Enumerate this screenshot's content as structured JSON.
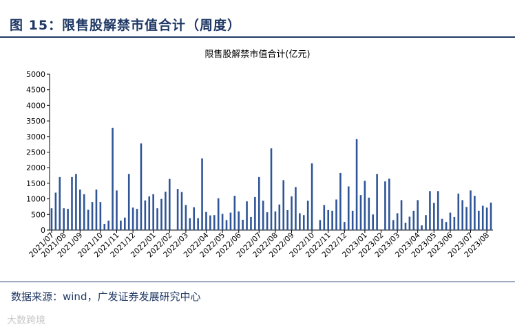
{
  "header": {
    "title": "图 15：限售股解禁市值合计（周度）"
  },
  "chart_data": {
    "type": "bar",
    "title": "限售股解禁市值合计(亿元)",
    "color": "#2f5597",
    "ylim": [
      0,
      5000
    ],
    "yticks": [
      0,
      500,
      1000,
      1500,
      2000,
      2500,
      3000,
      3500,
      4000,
      4500,
      5000
    ],
    "grid": false,
    "categories": [
      "2021/07",
      null,
      null,
      "2021/08",
      null,
      null,
      null,
      "2021/09",
      null,
      null,
      null,
      null,
      "2021/10",
      null,
      null,
      null,
      "2021/11",
      null,
      null,
      null,
      "2021/12",
      null,
      null,
      null,
      null,
      "2022/01",
      null,
      null,
      null,
      "2022/02",
      null,
      null,
      null,
      "2022/03",
      null,
      null,
      null,
      null,
      "2022/04",
      null,
      null,
      null,
      "2022/05",
      null,
      null,
      null,
      "2022/06",
      null,
      null,
      null,
      null,
      "2022/07",
      null,
      null,
      null,
      "2022/08",
      null,
      null,
      null,
      "2022/09",
      null,
      null,
      null,
      null,
      "2022/10",
      null,
      null,
      null,
      "2022/11",
      null,
      null,
      null,
      "2022/12",
      null,
      null,
      null,
      null,
      "2023/01",
      null,
      null,
      null,
      "2023/02",
      null,
      null,
      null,
      "2023/03",
      null,
      null,
      null,
      null,
      "2023/04",
      null,
      null,
      null,
      "2023/05",
      null,
      null,
      null,
      "2023/06",
      null,
      null,
      null,
      null,
      "2023/07",
      null,
      null,
      null,
      "2023/08",
      null
    ],
    "values": [
      700,
      1200,
      1700,
      700,
      680,
      1700,
      1800,
      1300,
      1150,
      650,
      900,
      1300,
      900,
      200,
      300,
      3280,
      1270,
      300,
      400,
      1800,
      720,
      680,
      2780,
      950,
      1080,
      1150,
      700,
      1000,
      1230,
      1640,
      0,
      1320,
      1220,
      800,
      380,
      730,
      380,
      2300,
      580,
      470,
      480,
      1020,
      520,
      320,
      560,
      1100,
      600,
      330,
      920,
      420,
      1060,
      1700,
      940,
      570,
      2620,
      600,
      820,
      1600,
      640,
      1080,
      1380,
      540,
      480,
      940,
      2140,
      0,
      320,
      800,
      640,
      620,
      980,
      1830,
      260,
      1400,
      620,
      2920,
      1120,
      1580,
      1040,
      500,
      1800,
      0,
      1560,
      1650,
      320,
      540,
      960,
      230,
      430,
      620,
      960,
      150,
      480,
      1250,
      870,
      1250,
      360,
      260,
      560,
      420,
      1170,
      960,
      740,
      1270,
      1100,
      620,
      780,
      720,
      880
    ]
  },
  "footer": {
    "source": "数据来源：wind，广发证券发展研究中心",
    "watermark": "大数跨境"
  }
}
